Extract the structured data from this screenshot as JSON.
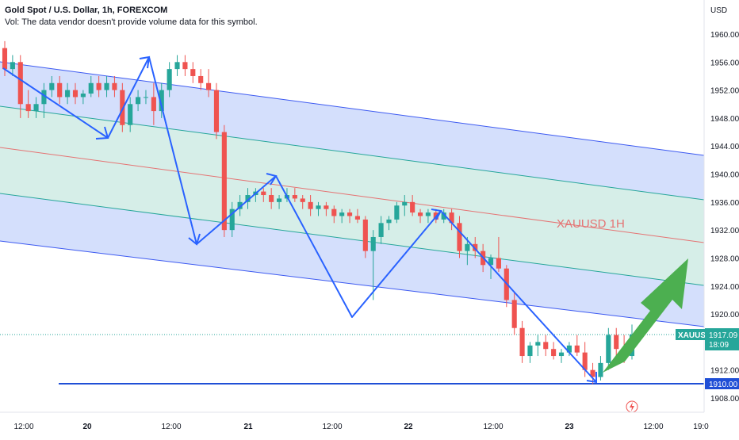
{
  "legend": {
    "title": "Gold Spot / U.S. Dollar, 1h, FOREXCOM",
    "vol_note": "Vol: The data vendor doesn't provide volume data for this symbol."
  },
  "axis": {
    "currency": "USD",
    "price_ticks": [
      "1960.00",
      "1956.00",
      "1952.00",
      "1948.00",
      "1944.00",
      "1940.00",
      "1936.00",
      "1932.00",
      "1928.00",
      "1924.00",
      "1920.00",
      "1912.00",
      "1908.00"
    ],
    "time_ticks": [
      {
        "label": "12:00",
        "bold": false
      },
      {
        "label": "20",
        "bold": true
      },
      {
        "label": "12:00",
        "bold": false
      },
      {
        "label": "21",
        "bold": true
      },
      {
        "label": "12:00",
        "bold": false
      },
      {
        "label": "22",
        "bold": true
      },
      {
        "label": "12:00",
        "bold": false
      },
      {
        "label": "23",
        "bold": true
      },
      {
        "label": "12:00",
        "bold": false
      },
      {
        "label": "19:0",
        "bold": false
      }
    ]
  },
  "price_badge": {
    "symbol": "XAUUSD",
    "price": "1917.09",
    "countdown": "18:09",
    "color": "#26a69a"
  },
  "support_badge": {
    "price": "1910.00",
    "color": "#1f4fd6"
  },
  "annotation": {
    "label": "XAUUSD 1H"
  },
  "colors": {
    "up": "#26a69a",
    "down": "#ef5350",
    "channel_blue": "#3d5af1",
    "channel_fill_blue": "#c9d7fb",
    "channel_fill_green": "#d6efe5",
    "mid_line": "#e57373",
    "zigzag": "#2962ff",
    "arrow": "#4caf50"
  },
  "chart_data": {
    "type": "candlestick",
    "symbol": "XAUUSD",
    "timeframe": "1h",
    "candles": [
      [
        1958.0,
        1959.0,
        1954.0,
        1955.0
      ],
      [
        1955.0,
        1957.0,
        1954.0,
        1956.0
      ],
      [
        1956.0,
        1957.0,
        1948.0,
        1950.0
      ],
      [
        1950.0,
        1952.0,
        1948.0,
        1949.0
      ],
      [
        1949.0,
        1951.0,
        1948.0,
        1950.0
      ],
      [
        1950.0,
        1953.0,
        1948.0,
        1952.0
      ],
      [
        1952.0,
        1954.0,
        1951.0,
        1953.0
      ],
      [
        1953.0,
        1954.0,
        1950.0,
        1951.0
      ],
      [
        1951.0,
        1953.0,
        1950.0,
        1952.0
      ],
      [
        1952.0,
        1953.0,
        1950.0,
        1951.0
      ],
      [
        1951.0,
        1952.0,
        1950.0,
        1951.5
      ],
      [
        1951.5,
        1954.0,
        1951.0,
        1953.0
      ],
      [
        1953.0,
        1954.0,
        1951.0,
        1952.0
      ],
      [
        1952.0,
        1954.0,
        1951.0,
        1953.0
      ],
      [
        1953.0,
        1954.0,
        1951.0,
        1952.0
      ],
      [
        1952.0,
        1953.0,
        1946.0,
        1947.0
      ],
      [
        1947.0,
        1951.0,
        1946.0,
        1950.0
      ],
      [
        1950.0,
        1952.0,
        1949.0,
        1951.0
      ],
      [
        1951.0,
        1952.0,
        1950.0,
        1951.0
      ],
      [
        1951.0,
        1953.0,
        1947.0,
        1949.0
      ],
      [
        1949.0,
        1953.0,
        1948.0,
        1952.0
      ],
      [
        1952.0,
        1956.0,
        1951.0,
        1955.0
      ],
      [
        1955.0,
        1957.0,
        1954.0,
        1956.0
      ],
      [
        1956.0,
        1957.0,
        1954.0,
        1955.0
      ],
      [
        1955.0,
        1956.0,
        1953.0,
        1954.0
      ],
      [
        1954.0,
        1955.0,
        1952.0,
        1953.0
      ],
      [
        1953.0,
        1955.0,
        1951.0,
        1952.0
      ],
      [
        1952.0,
        1953.0,
        1945.0,
        1946.0
      ],
      [
        1946.0,
        1947.0,
        1931.0,
        1932.0
      ],
      [
        1932.0,
        1936.0,
        1931.0,
        1935.0
      ],
      [
        1935.0,
        1937.0,
        1934.0,
        1936.0
      ],
      [
        1936.0,
        1938.0,
        1935.0,
        1937.0
      ],
      [
        1937.0,
        1938.0,
        1936.0,
        1937.5
      ],
      [
        1937.5,
        1938.0,
        1936.0,
        1937.0
      ],
      [
        1937.0,
        1938.0,
        1935.0,
        1936.0
      ],
      [
        1936.0,
        1937.0,
        1935.0,
        1936.5
      ],
      [
        1936.5,
        1938.0,
        1936.0,
        1937.0
      ],
      [
        1937.0,
        1938.0,
        1936.0,
        1936.5
      ],
      [
        1936.5,
        1937.0,
        1935.0,
        1936.0
      ],
      [
        1936.0,
        1937.0,
        1934.0,
        1935.0
      ],
      [
        1935.0,
        1936.0,
        1934.0,
        1935.5
      ],
      [
        1935.5,
        1936.0,
        1934.0,
        1935.0
      ],
      [
        1935.0,
        1935.5,
        1933.0,
        1934.0
      ],
      [
        1934.0,
        1935.0,
        1933.0,
        1934.5
      ],
      [
        1934.5,
        1935.0,
        1933.0,
        1934.0
      ],
      [
        1934.0,
        1935.0,
        1933.0,
        1933.5
      ],
      [
        1933.5,
        1934.0,
        1928.0,
        1929.0
      ],
      [
        1929.0,
        1932.0,
        1922.0,
        1931.0
      ],
      [
        1931.0,
        1934.0,
        1930.0,
        1933.0
      ],
      [
        1933.0,
        1934.0,
        1932.0,
        1933.5
      ],
      [
        1933.5,
        1936.0,
        1933.0,
        1935.5
      ],
      [
        1935.5,
        1937.0,
        1934.0,
        1936.0
      ],
      [
        1936.0,
        1937.0,
        1934.0,
        1934.5
      ],
      [
        1934.5,
        1935.0,
        1933.0,
        1934.0
      ],
      [
        1934.0,
        1935.0,
        1933.0,
        1934.5
      ],
      [
        1934.5,
        1935.0,
        1933.0,
        1933.5
      ],
      [
        1933.5,
        1935.0,
        1933.0,
        1934.5
      ],
      [
        1934.5,
        1935.0,
        1932.0,
        1933.0
      ],
      [
        1933.0,
        1934.0,
        1928.0,
        1929.0
      ],
      [
        1929.0,
        1931.0,
        1927.0,
        1930.0
      ],
      [
        1930.0,
        1931.0,
        1928.0,
        1929.0
      ],
      [
        1929.0,
        1930.0,
        1926.0,
        1927.0
      ],
      [
        1927.0,
        1928.5,
        1925.0,
        1928.0
      ],
      [
        1928.0,
        1931.0,
        1926.0,
        1926.5
      ],
      [
        1926.5,
        1927.0,
        1921.0,
        1922.0
      ],
      [
        1922.0,
        1923.0,
        1917.0,
        1918.0
      ],
      [
        1918.0,
        1919.0,
        1913.0,
        1914.0
      ],
      [
        1914.0,
        1916.0,
        1913.0,
        1915.5
      ],
      [
        1915.5,
        1917.0,
        1914.0,
        1916.0
      ],
      [
        1916.0,
        1917.0,
        1914.0,
        1915.0
      ],
      [
        1915.0,
        1916.0,
        1913.5,
        1914.0
      ],
      [
        1914.0,
        1915.0,
        1913.0,
        1914.5
      ],
      [
        1914.5,
        1916.0,
        1914.0,
        1915.5
      ],
      [
        1915.5,
        1917.0,
        1914.0,
        1914.5
      ],
      [
        1914.5,
        1916.0,
        1911.0,
        1912.0
      ],
      [
        1912.0,
        1913.0,
        1910.0,
        1911.0
      ],
      [
        1911.0,
        1914.0,
        1910.5,
        1913.0
      ],
      [
        1913.0,
        1918.0,
        1912.0,
        1917.0
      ],
      [
        1917.0,
        1918.0,
        1914.0,
        1915.0
      ],
      [
        1915.0,
        1917.0,
        1913.0,
        1914.0
      ],
      [
        1914.0,
        1918.5,
        1913.5,
        1917.09
      ]
    ]
  }
}
